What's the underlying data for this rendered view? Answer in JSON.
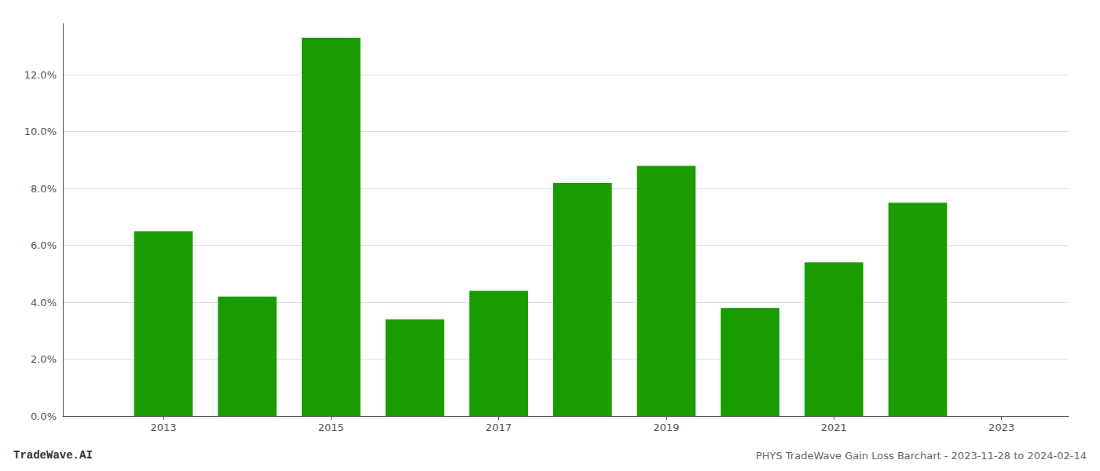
{
  "chart_data": {
    "type": "bar",
    "title": "PHYS TradeWave Gain Loss Barchart - 2023-11-28 to 2024-02-14",
    "annotations": [
      "TradeWave.AI"
    ],
    "x": [
      2013,
      2014,
      2015,
      2016,
      2017,
      2018,
      2019,
      2020,
      2021,
      2022
    ],
    "values": [
      0.065,
      0.042,
      0.133,
      0.034,
      0.044,
      0.082,
      0.088,
      0.038,
      0.054,
      0.075
    ],
    "color": "#1a9c00",
    "xlim": [
      2011.8,
      2023.8
    ],
    "xticks": [
      2013,
      2015,
      2017,
      2019,
      2021,
      2023
    ],
    "ylim": [
      0,
      0.138
    ],
    "yticks": [
      {
        "value": 0,
        "label": "0.0%"
      },
      {
        "value": 0.02,
        "label": "2.0%"
      },
      {
        "value": 0.04,
        "label": "4.0%"
      },
      {
        "value": 0.06,
        "label": "6.0%"
      },
      {
        "value": 0.08,
        "label": "8.0%"
      },
      {
        "value": 0.1,
        "label": "10.0%"
      },
      {
        "value": 0.12,
        "label": "12.0%"
      }
    ],
    "grid": true
  }
}
